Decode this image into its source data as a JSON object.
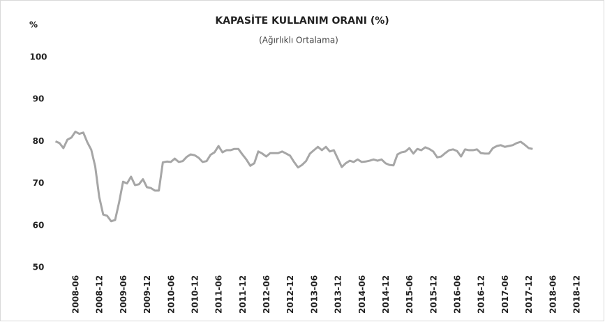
{
  "chart_data": {
    "type": "line",
    "title": "KAPASİTE KULLANIM ORANI (%)",
    "subtitle": "(Ağırlıklı Ortalama)",
    "y_label": "%",
    "color": "#a6a6a6",
    "ylim": [
      50,
      100
    ],
    "yticks": [
      50,
      60,
      70,
      80,
      90,
      100
    ],
    "grid": false,
    "categories": [
      null,
      null,
      null,
      null,
      null,
      "2008-06",
      null,
      null,
      null,
      null,
      null,
      "2008-12",
      null,
      null,
      null,
      null,
      null,
      "2009-06",
      null,
      null,
      null,
      null,
      null,
      "2009-12",
      null,
      null,
      null,
      null,
      null,
      "2010-06",
      null,
      null,
      null,
      null,
      null,
      "2010-12",
      null,
      null,
      null,
      null,
      null,
      "2011-06",
      null,
      null,
      null,
      null,
      null,
      "2011-12",
      null,
      null,
      null,
      null,
      null,
      "2012-06",
      null,
      null,
      null,
      null,
      null,
      "2012-12",
      null,
      null,
      null,
      null,
      null,
      "2013-06",
      null,
      null,
      null,
      null,
      null,
      "2013-12",
      null,
      null,
      null,
      null,
      null,
      "2014-06",
      null,
      null,
      null,
      null,
      null,
      "2014-12",
      null,
      null,
      null,
      null,
      null,
      "2015-06",
      null,
      null,
      null,
      null,
      null,
      "2015-12",
      null,
      null,
      null,
      null,
      null,
      "2016-06",
      null,
      null,
      null,
      null,
      null,
      "2016-12",
      null,
      null,
      null,
      null,
      null,
      "2017-06",
      null,
      null,
      null,
      null,
      null,
      "2017-12",
      null,
      null,
      null,
      null,
      null,
      "2018-06",
      null,
      null,
      null,
      null,
      null,
      "2018-12"
    ],
    "values": [
      80.0,
      79.6,
      78.4,
      80.4,
      80.9,
      82.3,
      81.8,
      82.1,
      79.8,
      78.0,
      74.0,
      66.8,
      62.6,
      62.3,
      61.0,
      61.3,
      65.5,
      70.4,
      70.0,
      71.6,
      69.6,
      69.8,
      71.0,
      69.1,
      68.9,
      68.3,
      68.3,
      75.0,
      75.2,
      75.1,
      75.9,
      75.1,
      75.3,
      76.3,
      76.9,
      76.7,
      76.1,
      75.1,
      75.3,
      76.8,
      77.4,
      78.9,
      77.4,
      77.9,
      77.9,
      78.2,
      78.2,
      76.9,
      75.7,
      74.2,
      74.8,
      77.6,
      77.1,
      76.4,
      77.2,
      77.2,
      77.2,
      77.6,
      77.1,
      76.6,
      75.1,
      73.8,
      74.4,
      75.3,
      77.1,
      77.9,
      78.7,
      77.9,
      78.7,
      77.6,
      77.9,
      75.9,
      73.9,
      74.8,
      75.4,
      75.1,
      75.7,
      75.1,
      75.2,
      75.4,
      75.7,
      75.4,
      75.7,
      74.8,
      74.4,
      74.3,
      76.9,
      77.4,
      77.6,
      78.4,
      77.1,
      78.2,
      77.9,
      78.6,
      78.2,
      77.6,
      76.2,
      76.4,
      77.2,
      77.9,
      78.1,
      77.7,
      76.4,
      78.1,
      77.9,
      77.9,
      78.1,
      77.2,
      77.1,
      77.1,
      78.4,
      78.9,
      79.1,
      78.7,
      78.9,
      79.1,
      79.6,
      79.9,
      79.2,
      78.4,
      78.2,
      null,
      null,
      null,
      null,
      null,
      null,
      null,
      null,
      null,
      null,
      null
    ]
  }
}
